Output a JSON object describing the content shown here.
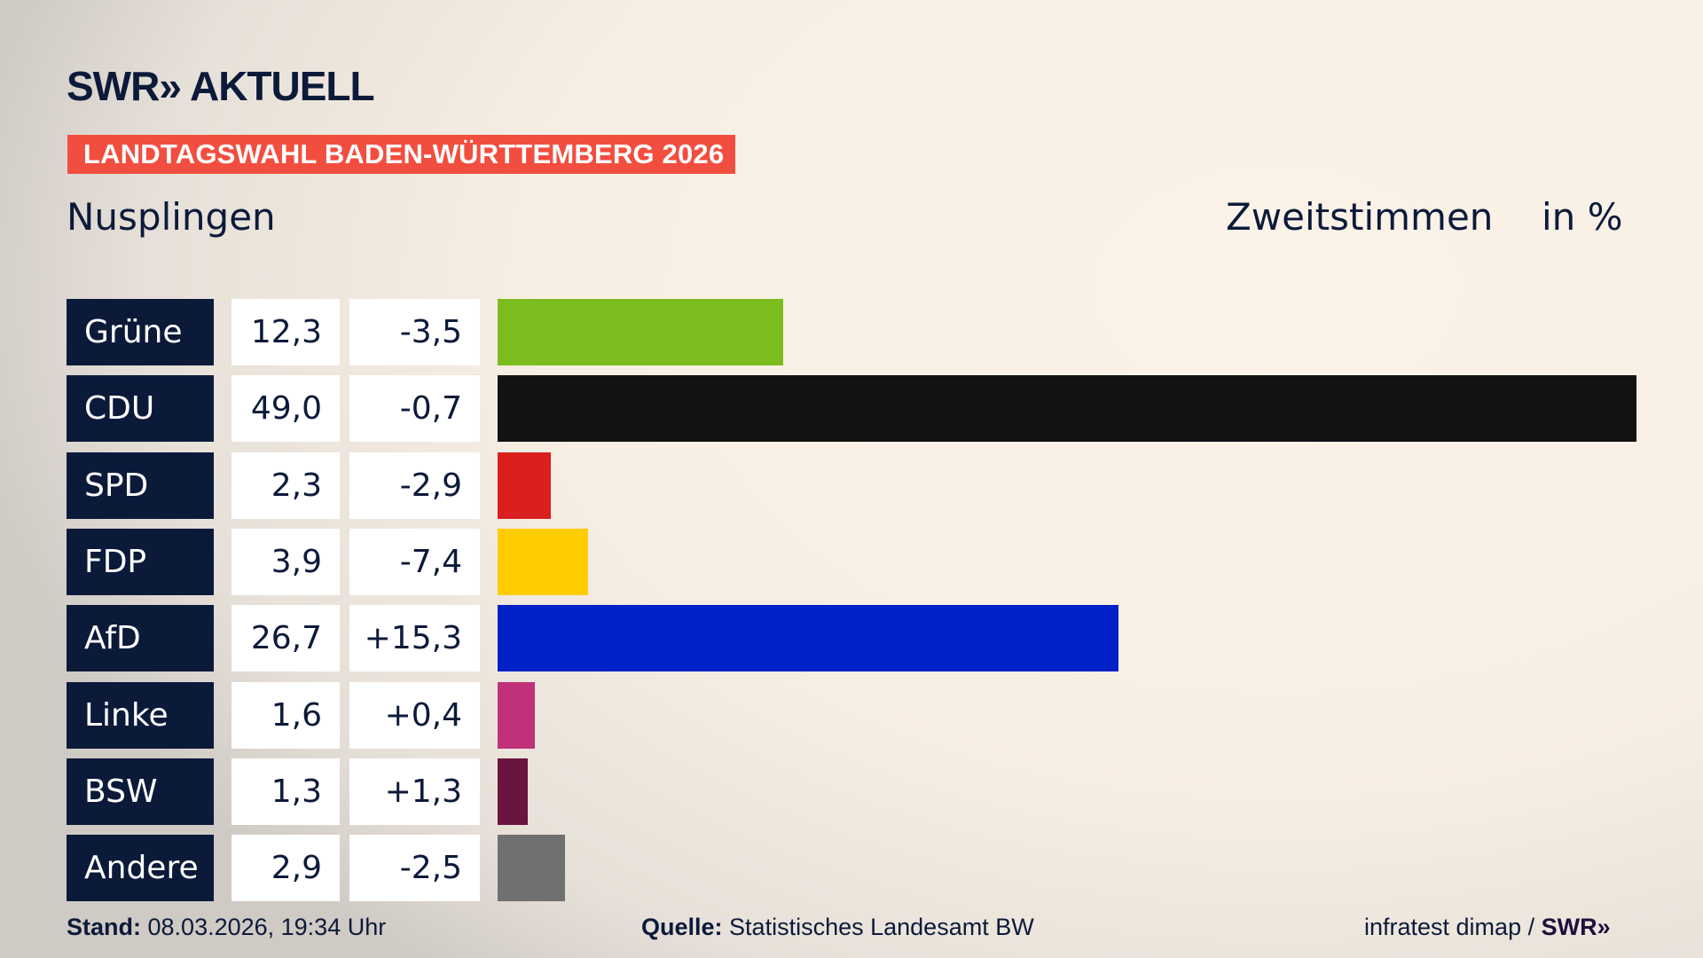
{
  "header": {
    "logo": "SWR» AKTUELL",
    "banner": "LANDTAGSWAHL BADEN-WÜRTTEMBERG 2026",
    "place": "Nusplingen",
    "measure": "Zweitstimmen",
    "unit": "in %"
  },
  "chart_data": {
    "type": "bar",
    "orientation": "horizontal",
    "categories": [
      "Grüne",
      "CDU",
      "SPD",
      "FDP",
      "AfD",
      "Linke",
      "BSW",
      "Andere"
    ],
    "values": [
      12.3,
      49.0,
      2.3,
      3.9,
      26.7,
      1.6,
      1.3,
      2.9
    ],
    "value_labels": [
      "12,3",
      "49,0",
      "2,3",
      "3,9",
      "26,7",
      "1,6",
      "1,3",
      "2,9"
    ],
    "changes": [
      -3.5,
      -0.7,
      -2.9,
      -7.4,
      15.3,
      0.4,
      1.3,
      -2.5
    ],
    "change_labels": [
      "-3,5",
      "-0,7",
      "-2,9",
      "-7,4",
      "+15,3",
      "+0,4",
      "+1,3",
      "-2,5"
    ],
    "colors": [
      "#7bbd1e",
      "#121212",
      "#d9201f",
      "#ffcc00",
      "#0021c7",
      "#c0317a",
      "#6a1540",
      "#707070"
    ],
    "xlim": [
      0,
      49.0
    ],
    "grid": false
  },
  "footer": {
    "stand_label": "Stand:",
    "stand_value": "08.03.2026, 19:34 Uhr",
    "source_label": "Quelle:",
    "source_value": "Statistisches Landesamt BW",
    "credit": "infratest dimap / ",
    "credit_logo": "SWR»"
  }
}
